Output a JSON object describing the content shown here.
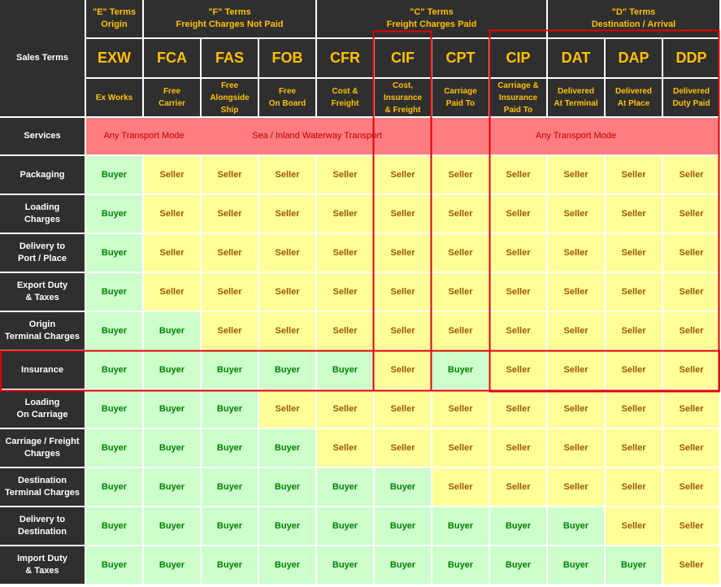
{
  "header": {
    "corner": "Sales Terms",
    "groups": [
      {
        "title": "\"E\" Terms",
        "subtitle": "Origin"
      },
      {
        "title": "\"F\" Terms",
        "subtitle": "Freight Charges Not Paid"
      },
      {
        "title": "\"C\" Terms",
        "subtitle": "Freight Charges Paid"
      },
      {
        "title": "\"D\" Terms",
        "subtitle": "Destination / Arrival"
      }
    ],
    "terms": [
      {
        "code": "EXW",
        "name": "Ex Works"
      },
      {
        "code": "FCA",
        "name": "Free\nCarrier"
      },
      {
        "code": "FAS",
        "name": "Free\nAlongside\nShip"
      },
      {
        "code": "FOB",
        "name": "Free\nOn Board"
      },
      {
        "code": "CFR",
        "name": "Cost &\nFreight"
      },
      {
        "code": "CIF",
        "name": "Cost,\nInsurance\n& Freight"
      },
      {
        "code": "CPT",
        "name": "Carriage\nPaid To"
      },
      {
        "code": "CIP",
        "name": "Carriage &\nInsurance\nPaid To"
      },
      {
        "code": "DAT",
        "name": "Delivered\nAt Terminal"
      },
      {
        "code": "DAP",
        "name": "Delivered\nAt Place"
      },
      {
        "code": "DDP",
        "name": "Delivered\nDuty Paid"
      }
    ]
  },
  "services": {
    "label": "Services",
    "modes": [
      "Any Transport Mode",
      "Sea / Inland Waterway Transport",
      "Any Transport Mode"
    ]
  },
  "cell_colors": {
    "Buyer": {
      "fill": "#ccffcc",
      "text": "#008000"
    },
    "Seller": {
      "fill": "#ffff99",
      "text": "#9c5700"
    }
  },
  "rows": [
    {
      "label": "Packaging",
      "values": [
        "Buyer",
        "Seller",
        "Seller",
        "Seller",
        "Seller",
        "Seller",
        "Seller",
        "Seller",
        "Seller",
        "Seller",
        "Seller"
      ]
    },
    {
      "label": "Loading\nCharges",
      "values": [
        "Buyer",
        "Seller",
        "Seller",
        "Seller",
        "Seller",
        "Seller",
        "Seller",
        "Seller",
        "Seller",
        "Seller",
        "Seller"
      ]
    },
    {
      "label": "Delivery to\nPort / Place",
      "values": [
        "Buyer",
        "Seller",
        "Seller",
        "Seller",
        "Seller",
        "Seller",
        "Seller",
        "Seller",
        "Seller",
        "Seller",
        "Seller"
      ]
    },
    {
      "label": "Export Duty\n& Taxes",
      "values": [
        "Buyer",
        "Seller",
        "Seller",
        "Seller",
        "Seller",
        "Seller",
        "Seller",
        "Seller",
        "Seller",
        "Seller",
        "Seller"
      ]
    },
    {
      "label": "Origin\nTerminal Charges",
      "values": [
        "Buyer",
        "Buyer",
        "Seller",
        "Seller",
        "Seller",
        "Seller",
        "Seller",
        "Seller",
        "Seller",
        "Seller",
        "Seller"
      ]
    },
    {
      "label": "Insurance",
      "values": [
        "Buyer",
        "Buyer",
        "Buyer",
        "Buyer",
        "Buyer",
        "Seller",
        "Buyer",
        "Seller",
        "Seller",
        "Seller",
        "Seller"
      ]
    },
    {
      "label": "Loading\nOn Carriage",
      "values": [
        "Buyer",
        "Buyer",
        "Buyer",
        "Seller",
        "Seller",
        "Seller",
        "Seller",
        "Seller",
        "Seller",
        "Seller",
        "Seller"
      ]
    },
    {
      "label": "Carriage / Freight\nCharges",
      "values": [
        "Buyer",
        "Buyer",
        "Buyer",
        "Buyer",
        "Seller",
        "Seller",
        "Seller",
        "Seller",
        "Seller",
        "Seller",
        "Seller"
      ]
    },
    {
      "label": "Destination\nTerminal Charges",
      "values": [
        "Buyer",
        "Buyer",
        "Buyer",
        "Buyer",
        "Buyer",
        "Buyer",
        "Seller",
        "Seller",
        "Seller",
        "Seller",
        "Seller"
      ]
    },
    {
      "label": "Delivery to\nDestination",
      "values": [
        "Buyer",
        "Buyer",
        "Buyer",
        "Buyer",
        "Buyer",
        "Buyer",
        "Buyer",
        "Buyer",
        "Buyer",
        "Seller",
        "Seller"
      ]
    },
    {
      "label": "Import Duty\n& Taxes",
      "values": [
        "Buyer",
        "Buyer",
        "Buyer",
        "Buyer",
        "Buyer",
        "Buyer",
        "Buyer",
        "Buyer",
        "Buyer",
        "Buyer",
        "Seller"
      ]
    }
  ]
}
